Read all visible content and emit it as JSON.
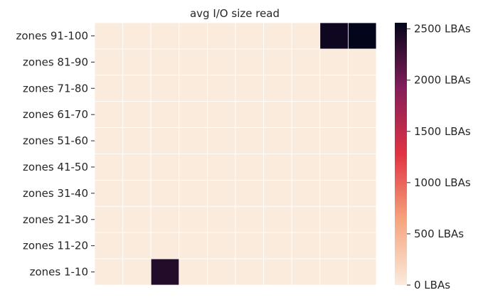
{
  "chart_data": {
    "type": "heatmap",
    "title": "avg I/O size read",
    "xlabel": "",
    "ylabel": "",
    "row_labels": [
      "zones 91-100",
      "zones 81-90",
      "zones 71-80",
      "zones 61-70",
      "zones 51-60",
      "zones 41-50",
      "zones 31-40",
      "zones 21-30",
      "zones 11-20",
      "zones 1-10"
    ],
    "values": [
      [
        0,
        0,
        0,
        0,
        0,
        0,
        0,
        0,
        2500,
        2560
      ],
      [
        0,
        0,
        0,
        0,
        0,
        0,
        0,
        0,
        0,
        0
      ],
      [
        0,
        0,
        0,
        0,
        0,
        0,
        0,
        0,
        0,
        0
      ],
      [
        0,
        0,
        0,
        0,
        0,
        0,
        0,
        0,
        0,
        0
      ],
      [
        0,
        0,
        0,
        0,
        0,
        0,
        0,
        0,
        0,
        0
      ],
      [
        0,
        0,
        0,
        0,
        0,
        0,
        0,
        0,
        0,
        0
      ],
      [
        0,
        0,
        0,
        0,
        0,
        0,
        0,
        0,
        0,
        0
      ],
      [
        0,
        0,
        0,
        0,
        0,
        0,
        0,
        0,
        0,
        0
      ],
      [
        0,
        0,
        0,
        0,
        0,
        0,
        0,
        0,
        0,
        0
      ],
      [
        0,
        0,
        2400,
        0,
        0,
        0,
        0,
        0,
        0,
        0
      ]
    ],
    "colorbar": {
      "min": 0,
      "max": 2560,
      "ticks": [
        0,
        500,
        1000,
        1500,
        2000,
        2500
      ],
      "tick_labels": [
        "0 LBAs",
        "500 LBAs",
        "1000 LBAs",
        "1500 LBAs",
        "2000 LBAs",
        "2500 LBAs"
      ],
      "colormap": "rocket_r",
      "stops": [
        "#faebdd",
        "#f6a47c",
        "#e13342",
        "#841e5a",
        "#03051a"
      ]
    },
    "grid_line_color": "#ffffff",
    "x_tick_labels_visible": false
  }
}
